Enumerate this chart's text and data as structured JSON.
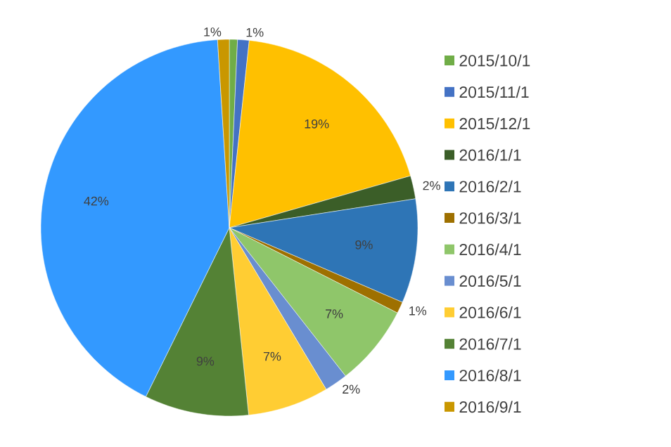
{
  "chart_data": {
    "type": "pie",
    "categories": [
      "2015/10/1",
      "2015/11/1",
      "2015/12/1",
      "2016/1/1",
      "2016/2/1",
      "2016/3/1",
      "2016/4/1",
      "2016/5/1",
      "2016/6/1",
      "2016/7/1",
      "2016/8/1",
      "2016/9/1"
    ],
    "values": [
      0.7,
      1,
      19,
      2,
      9,
      1,
      7,
      2,
      7,
      9,
      42,
      1
    ],
    "value_labels": [
      null,
      "1%",
      "19%",
      "2%",
      "9%",
      "1%",
      "7%",
      "2%",
      "7%",
      "9%",
      "42%",
      "1%"
    ],
    "colors": [
      "#70ad47",
      "#4472c4",
      "#ffc000",
      "#3b5e28",
      "#2e75b6",
      "#9e7000",
      "#8fc66a",
      "#698ed0",
      "#ffcd33",
      "#548235",
      "#3399ff",
      "#c99700"
    ],
    "legend": "right"
  }
}
